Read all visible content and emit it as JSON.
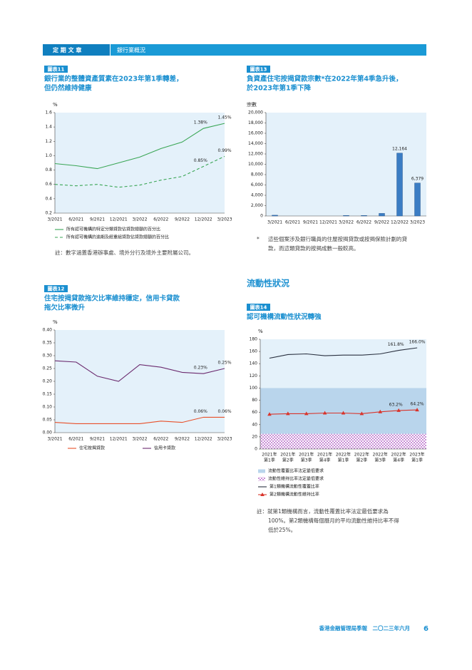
{
  "header": {
    "section": "定 期 文 章",
    "topic": "銀行業概況"
  },
  "section_heading": "流動性狀況",
  "footer": {
    "publication": "香港金融管理局季報　二〇二三年六月",
    "page": "6"
  },
  "chart_data": [
    {
      "type": "line",
      "label": "圖表11",
      "title": [
        "銀行業的整體資產質素在2023年第1季轉差，",
        "但仍然維持健康"
      ],
      "y_label": "%",
      "categories": [
        "3/2021",
        "6/2021",
        "9/2021",
        "12/2021",
        "3/2022",
        "6/2022",
        "9/2022",
        "12/2022",
        "3/2023"
      ],
      "series": [
        {
          "name": "所有認可機構的特定分類貸款佔貸款總額的百分比",
          "color": "#3aa655",
          "dash": false,
          "values": [
            0.89,
            0.86,
            0.82,
            0.9,
            0.98,
            1.1,
            1.19,
            1.38,
            1.45
          ],
          "value_labels": [
            null,
            null,
            null,
            null,
            null,
            null,
            null,
            "1.38%",
            "1.45%"
          ]
        },
        {
          "name": "所有認可機構的逾期及經重組貸款佔貸款總額的百分比",
          "color": "#3aa655",
          "dash": true,
          "values": [
            0.6,
            0.58,
            0.6,
            0.56,
            0.59,
            0.66,
            0.71,
            0.85,
            0.99
          ],
          "value_labels": [
            null,
            null,
            null,
            null,
            null,
            null,
            null,
            "0.85%",
            "0.99%"
          ]
        }
      ],
      "ylim": [
        0.2,
        1.6
      ],
      "yticks": [
        0.2,
        0.4,
        0.6,
        0.8,
        {
          "value": 1,
          "label": "1.0"
        },
        1.2,
        1.4,
        1.6
      ],
      "note": [
        "註：數字涵蓋香港辦事處、境外分行及境外主要附屬公司。"
      ]
    },
    {
      "type": "bar",
      "label": "圖表13",
      "title": [
        "負資產住宅按揭貸款宗數*在2022年第4季急升後，",
        "於2023年第1季下降"
      ],
      "y_label": "宗數",
      "color": "#3b7dc4",
      "categories": [
        "3/2021",
        "6/2021",
        "9/2021",
        "12/2021",
        "3/2022",
        "6/2022",
        "9/2022",
        "12/2022",
        "3/2023"
      ],
      "values": [
        150,
        0,
        0,
        0,
        100,
        100,
        500,
        12164,
        6379
      ],
      "value_labels": [
        null,
        null,
        null,
        null,
        null,
        null,
        null,
        "12,164",
        "6,379"
      ],
      "ylim": [
        0,
        20000
      ],
      "yticks": [
        0,
        {
          "value": 2000,
          "label": "2,000"
        },
        {
          "value": 4000,
          "label": "4,000"
        },
        {
          "value": 6000,
          "label": "6,000"
        },
        {
          "value": 8000,
          "label": "8,000"
        },
        {
          "value": 10000,
          "label": "10,000"
        },
        {
          "value": 12000,
          "label": "12,000"
        },
        {
          "value": 14000,
          "label": "14,000"
        },
        {
          "value": 16000,
          "label": "16,000"
        },
        {
          "value": 18000,
          "label": "18,000"
        },
        {
          "value": 20000,
          "label": "20,000"
        }
      ],
      "note_mark": "*",
      "note": [
        "這些個案涉及銀行職員的住屋按揭貸款或按揭保險計劃的貸",
        "款，而這類貸款的按揭成數一般較高。"
      ]
    },
    {
      "type": "line",
      "label": "圖表12",
      "title": [
        "住宅按揭貸款拖欠比率維持穩定，信用卡貸款",
        "拖欠比率微升"
      ],
      "y_label": "%",
      "categories": [
        "3/2021",
        "6/2021",
        "9/2021",
        "12/2021",
        "3/2022",
        "6/2022",
        "9/2022",
        "12/2022",
        "3/2023"
      ],
      "series": [
        {
          "name": "住宅按揭貸款",
          "color": "#e8502a",
          "dash": false,
          "values": [
            0.04,
            0.035,
            0.035,
            0.035,
            0.035,
            0.045,
            0.04,
            0.06,
            0.06
          ],
          "value_labels": [
            null,
            null,
            null,
            null,
            null,
            null,
            null,
            "0.06%",
            "0.06%"
          ]
        },
        {
          "name": "信用卡貸款",
          "color": "#6b2a6e",
          "dash": false,
          "values": [
            0.28,
            0.275,
            0.22,
            0.2,
            0.265,
            0.255,
            0.235,
            0.23,
            0.25
          ],
          "value_labels": [
            null,
            null,
            null,
            null,
            null,
            null,
            null,
            "0.23%",
            "0.25%"
          ]
        }
      ],
      "ylim": [
        0,
        0.4
      ],
      "yticks": [
        {
          "value": 0,
          "label": "0.00"
        },
        0.05,
        {
          "value": 0.1,
          "label": "0.10"
        },
        0.15,
        {
          "value": 0.2,
          "label": "0.20"
        },
        0.25,
        {
          "value": 0.3,
          "label": "0.30"
        },
        0.35,
        {
          "value": 0.4,
          "label": "0.40"
        }
      ]
    },
    {
      "type": "line",
      "label": "圖表14",
      "title": [
        "認可機構流動性狀況轉強"
      ],
      "y_label": "%",
      "categories": [
        [
          "2021年",
          "第1季"
        ],
        [
          "2021年",
          "第2季"
        ],
        [
          "2021年",
          "第3季"
        ],
        [
          "2021年",
          "第4季"
        ],
        [
          "2022年",
          "第1季"
        ],
        [
          "2022年",
          "第2季"
        ],
        [
          "2022年",
          "第3季"
        ],
        [
          "2022年",
          "第4季"
        ],
        [
          "2023年",
          "第1季"
        ]
      ],
      "bands": [
        {
          "name": "流動性覆蓋比率法定最低要求",
          "color": "#b9d5ec",
          "pattern": "solid",
          "value": 100
        },
        {
          "name": "流動性維持比率法定最低要求",
          "color": "#c98fd6",
          "pattern": "checkered",
          "value": 25
        }
      ],
      "series": [
        {
          "name": "第1類機構流動性覆蓋比率",
          "color": "#2a3140",
          "dash": false,
          "values": [
            149,
            155,
            156,
            153,
            154,
            154,
            156,
            161.8,
            166
          ],
          "value_labels": [
            null,
            null,
            null,
            null,
            null,
            null,
            null,
            "161.8%",
            "166.0%"
          ]
        },
        {
          "name": "第2類機構流動性維持比率",
          "color": "#d9342b",
          "dash": false,
          "marker": "triangle",
          "values": [
            57,
            58,
            58,
            59,
            59,
            58,
            61,
            63.2,
            64.2
          ],
          "value_labels": [
            null,
            null,
            null,
            null,
            null,
            null,
            null,
            "63.2%",
            "64.2%"
          ]
        }
      ],
      "ylim": [
        0,
        180
      ],
      "yticks": [
        0,
        20,
        40,
        60,
        80,
        100,
        120,
        140,
        160,
        180
      ],
      "note": [
        "註：就第1類機構而言，流動性覆蓋比率法定最低要求為",
        "100%。第2類機構每個曆月的平均流動性維持比率不得",
        "低於25%。"
      ]
    }
  ]
}
